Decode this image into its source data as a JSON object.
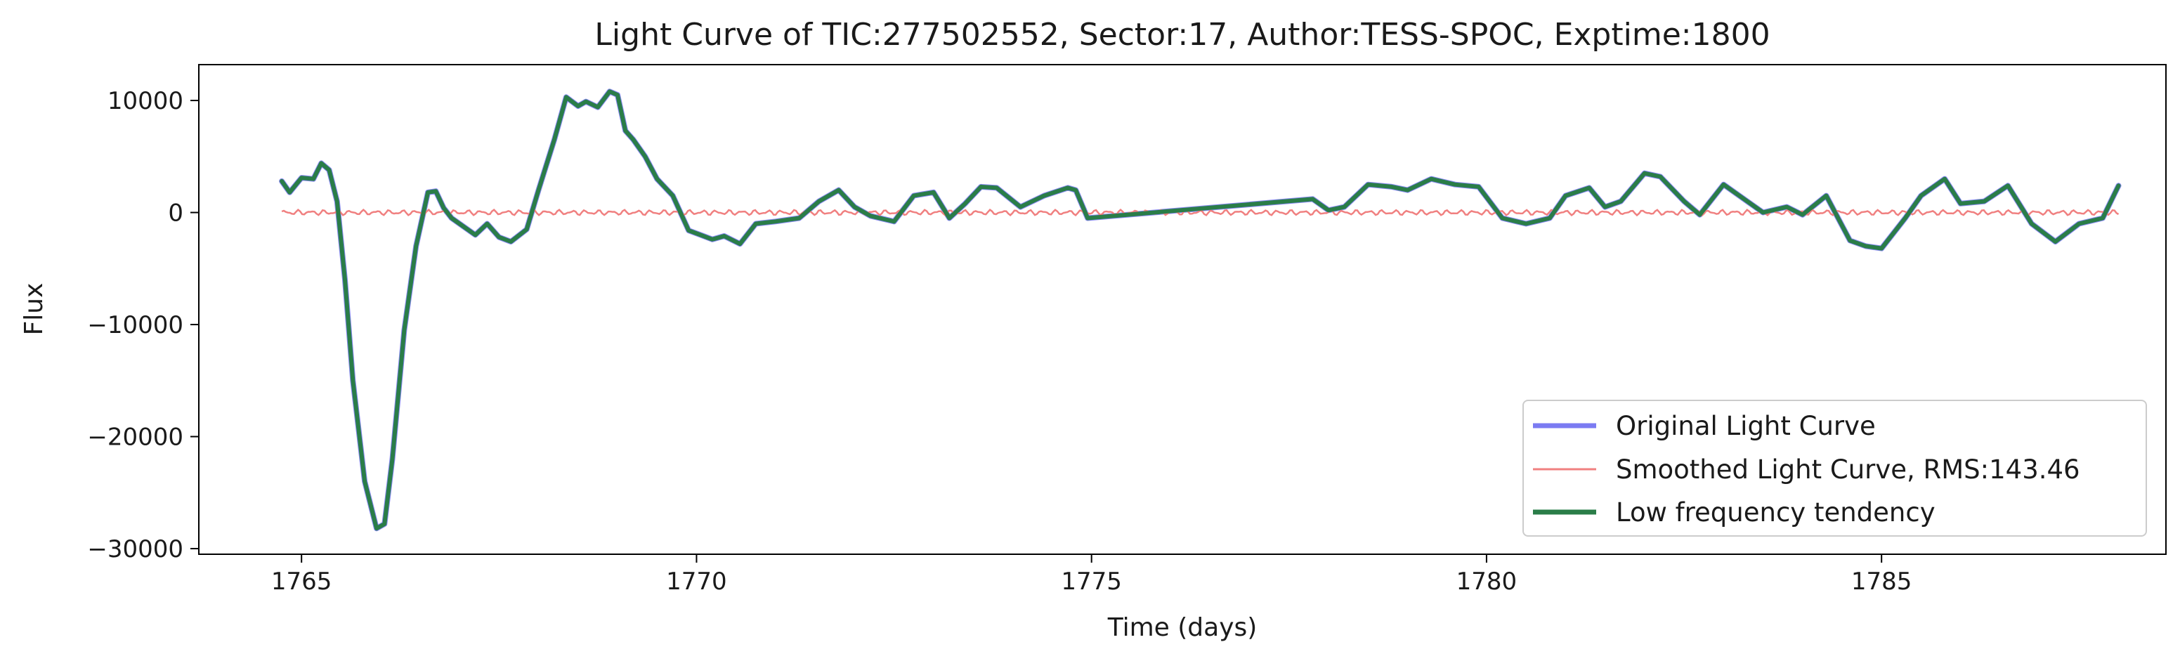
{
  "chart_data": {
    "type": "line",
    "title": "Light Curve of TIC:277502552, Sector:17, Author:TESS-SPOC, Exptime:1800",
    "xlabel": "Time (days)",
    "ylabel": "Flux",
    "xlim": [
      1763.7,
      1788.6
    ],
    "ylim": [
      -30500,
      13200
    ],
    "xticks": [
      1765,
      1770,
      1775,
      1780,
      1785
    ],
    "xtick_labels": [
      "1765",
      "1770",
      "1775",
      "1780",
      "1785"
    ],
    "yticks": [
      10000,
      0,
      -10000,
      -20000,
      -30000
    ],
    "ytick_labels": [
      "10000",
      "0",
      "−10000",
      "−20000",
      "−30000"
    ],
    "grid": false,
    "legend_position": "lower right",
    "series": [
      {
        "name": "Original Light Curve",
        "color": "#7b7bf2",
        "x": [
          1764.75,
          1764.85,
          1765.0,
          1765.15,
          1765.25,
          1765.35,
          1765.45,
          1765.55,
          1765.65,
          1765.8,
          1765.95,
          1766.05,
          1766.15,
          1766.3,
          1766.45,
          1766.6,
          1766.7,
          1766.8,
          1766.9,
          1767.0,
          1767.2,
          1767.35,
          1767.5,
          1767.65,
          1767.85,
          1768.0,
          1768.2,
          1768.35,
          1768.5,
          1768.6,
          1768.75,
          1768.9,
          1769.0,
          1769.1,
          1769.2,
          1769.35,
          1769.5,
          1769.7,
          1769.9,
          1770.05,
          1770.2,
          1770.35,
          1770.55,
          1770.75,
          1771.0,
          1771.3,
          1771.55,
          1771.8,
          1772.0,
          1772.2,
          1772.5,
          1772.75,
          1773.0,
          1773.2,
          1773.4,
          1773.6,
          1773.8,
          1774.1,
          1774.4,
          1774.7,
          1774.8,
          1774.95,
          1777.8,
          1777.9,
          1778.0,
          1778.2,
          1778.5,
          1778.8,
          1779.0,
          1779.3,
          1779.6,
          1779.9,
          1780.2,
          1780.5,
          1780.8,
          1781.0,
          1781.3,
          1781.5,
          1781.7,
          1782.0,
          1782.2,
          1782.5,
          1782.7,
          1783.0,
          1783.3,
          1783.5,
          1783.8,
          1784.0,
          1784.3,
          1784.6,
          1784.8,
          1785.0,
          1785.3,
          1785.5,
          1785.8,
          1786.0,
          1786.3,
          1786.6,
          1786.9,
          1787.2,
          1787.5,
          1787.8,
          1788.0
        ],
        "y": [
          2800,
          1800,
          3100,
          3000,
          4400,
          3800,
          1000,
          -6000,
          -15000,
          -24000,
          -28200,
          -27800,
          -22000,
          -10500,
          -3000,
          1800,
          1900,
          400,
          -500,
          -1000,
          -2000,
          -1000,
          -2200,
          -2600,
          -1500,
          2000,
          6500,
          10300,
          9500,
          9900,
          9400,
          10800,
          10500,
          7300,
          6500,
          5000,
          3000,
          1500,
          -1600,
          -2000,
          -2400,
          -2100,
          -2800,
          -1000,
          -800,
          -500,
          1000,
          2000,
          500,
          -300,
          -800,
          1500,
          1800,
          -500,
          800,
          2300,
          2200,
          500,
          1500,
          2200,
          2000,
          -500,
          1200,
          700,
          200,
          500,
          2500,
          2300,
          2000,
          3000,
          2500,
          2300,
          -500,
          -1000,
          -500,
          1500,
          2200,
          500,
          1000,
          3500,
          3200,
          1000,
          -200,
          2500,
          1000,
          0,
          500,
          -200,
          1500,
          -2500,
          -3000,
          -3200,
          -500,
          1500,
          3000,
          800,
          1000,
          2400,
          -1000,
          -2600,
          -1000,
          -500,
          2400
        ]
      },
      {
        "name": "Smoothed Light Curve, RMS:143.46",
        "color": "#f08080",
        "x": [
          1764.75,
          1788.0
        ],
        "y": [
          0,
          0
        ],
        "rms": 143.46
      },
      {
        "name": "Low frequency tendency",
        "color": "#2a7d48",
        "x": [
          1764.75,
          1764.85,
          1765.0,
          1765.15,
          1765.25,
          1765.35,
          1765.45,
          1765.55,
          1765.65,
          1765.8,
          1765.95,
          1766.05,
          1766.15,
          1766.3,
          1766.45,
          1766.6,
          1766.7,
          1766.8,
          1766.9,
          1767.0,
          1767.2,
          1767.35,
          1767.5,
          1767.65,
          1767.85,
          1768.0,
          1768.2,
          1768.35,
          1768.5,
          1768.6,
          1768.75,
          1768.9,
          1769.0,
          1769.1,
          1769.2,
          1769.35,
          1769.5,
          1769.7,
          1769.9,
          1770.05,
          1770.2,
          1770.35,
          1770.55,
          1770.75,
          1771.0,
          1771.3,
          1771.55,
          1771.8,
          1772.0,
          1772.2,
          1772.5,
          1772.75,
          1773.0,
          1773.2,
          1773.4,
          1773.6,
          1773.8,
          1774.1,
          1774.4,
          1774.7,
          1774.8,
          1774.95,
          1777.8,
          1777.9,
          1778.0,
          1778.2,
          1778.5,
          1778.8,
          1779.0,
          1779.3,
          1779.6,
          1779.9,
          1780.2,
          1780.5,
          1780.8,
          1781.0,
          1781.3,
          1781.5,
          1781.7,
          1782.0,
          1782.2,
          1782.5,
          1782.7,
          1783.0,
          1783.3,
          1783.5,
          1783.8,
          1784.0,
          1784.3,
          1784.6,
          1784.8,
          1785.0,
          1785.3,
          1785.5,
          1785.8,
          1786.0,
          1786.3,
          1786.6,
          1786.9,
          1787.2,
          1787.5,
          1787.8,
          1788.0
        ],
        "y": [
          2800,
          1800,
          3100,
          3000,
          4400,
          3800,
          1000,
          -6000,
          -15000,
          -24000,
          -28200,
          -27800,
          -22000,
          -10500,
          -3000,
          1800,
          1900,
          400,
          -500,
          -1000,
          -2000,
          -1000,
          -2200,
          -2600,
          -1500,
          2000,
          6500,
          10300,
          9500,
          9900,
          9400,
          10800,
          10500,
          7300,
          6500,
          5000,
          3000,
          1500,
          -1600,
          -2000,
          -2400,
          -2100,
          -2800,
          -1000,
          -800,
          -500,
          1000,
          2000,
          500,
          -300,
          -800,
          1500,
          1800,
          -500,
          800,
          2300,
          2200,
          500,
          1500,
          2200,
          2000,
          -500,
          1200,
          700,
          200,
          500,
          2500,
          2300,
          2000,
          3000,
          2500,
          2300,
          -500,
          -1000,
          -500,
          1500,
          2200,
          500,
          1000,
          3500,
          3200,
          1000,
          -200,
          2500,
          1000,
          0,
          500,
          -200,
          1500,
          -2500,
          -3000,
          -3200,
          -500,
          1500,
          3000,
          800,
          1000,
          2400,
          -1000,
          -2600,
          -1000,
          -500,
          2400
        ]
      }
    ]
  }
}
